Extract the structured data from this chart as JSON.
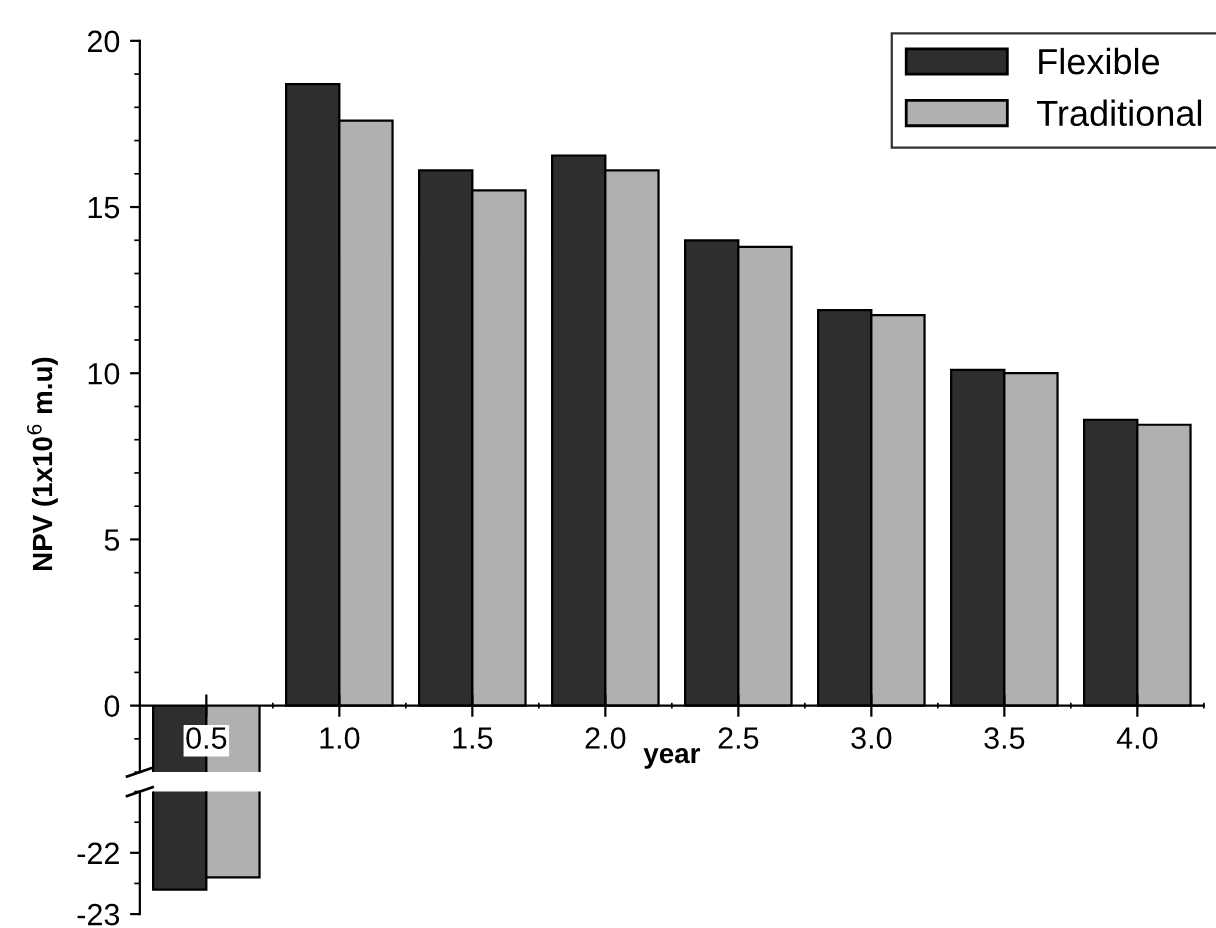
{
  "chart_data": [
    {
      "type": "bar",
      "categories": [
        "0.5",
        "1.0",
        "1.5",
        "2.0",
        "2.5",
        "3.0",
        "3.5",
        "4.0"
      ],
      "series": [
        {
          "name": "Flexible",
          "color": "#2e2e2e",
          "values": [
            null,
            18.7,
            16.1,
            16.55,
            14.0,
            11.9,
            10.1,
            8.6
          ]
        },
        {
          "name": "Traditional",
          "color": "#b0b0b0",
          "values": [
            null,
            17.6,
            15.5,
            16.1,
            13.8,
            11.75,
            10.0,
            8.45
          ]
        }
      ],
      "xlabel": "year",
      "ylabel": "NPV (1x10$^{6}$ m.u)",
      "ylim": [
        -2,
        20
      ],
      "yticks": [
        0,
        5,
        10,
        15,
        20
      ],
      "legend": "top right"
    },
    {
      "type": "bar",
      "categories": [
        "0.5",
        "1.0",
        "1.5",
        "2.0",
        "2.5",
        "3.0",
        "3.5",
        "4.0"
      ],
      "series": [
        {
          "color": "#2e2e2e",
          "values": [
            -22.6,
            null,
            null,
            null,
            null,
            null,
            null,
            null
          ]
        },
        {
          "color": "#b0b0b0",
          "values": [
            -22.4,
            null,
            null,
            null,
            null,
            null,
            null,
            null
          ]
        }
      ],
      "ylim": [
        -23,
        -21
      ],
      "yticks": [
        -23,
        -22
      ],
      "tick_labels": "y"
    }
  ]
}
